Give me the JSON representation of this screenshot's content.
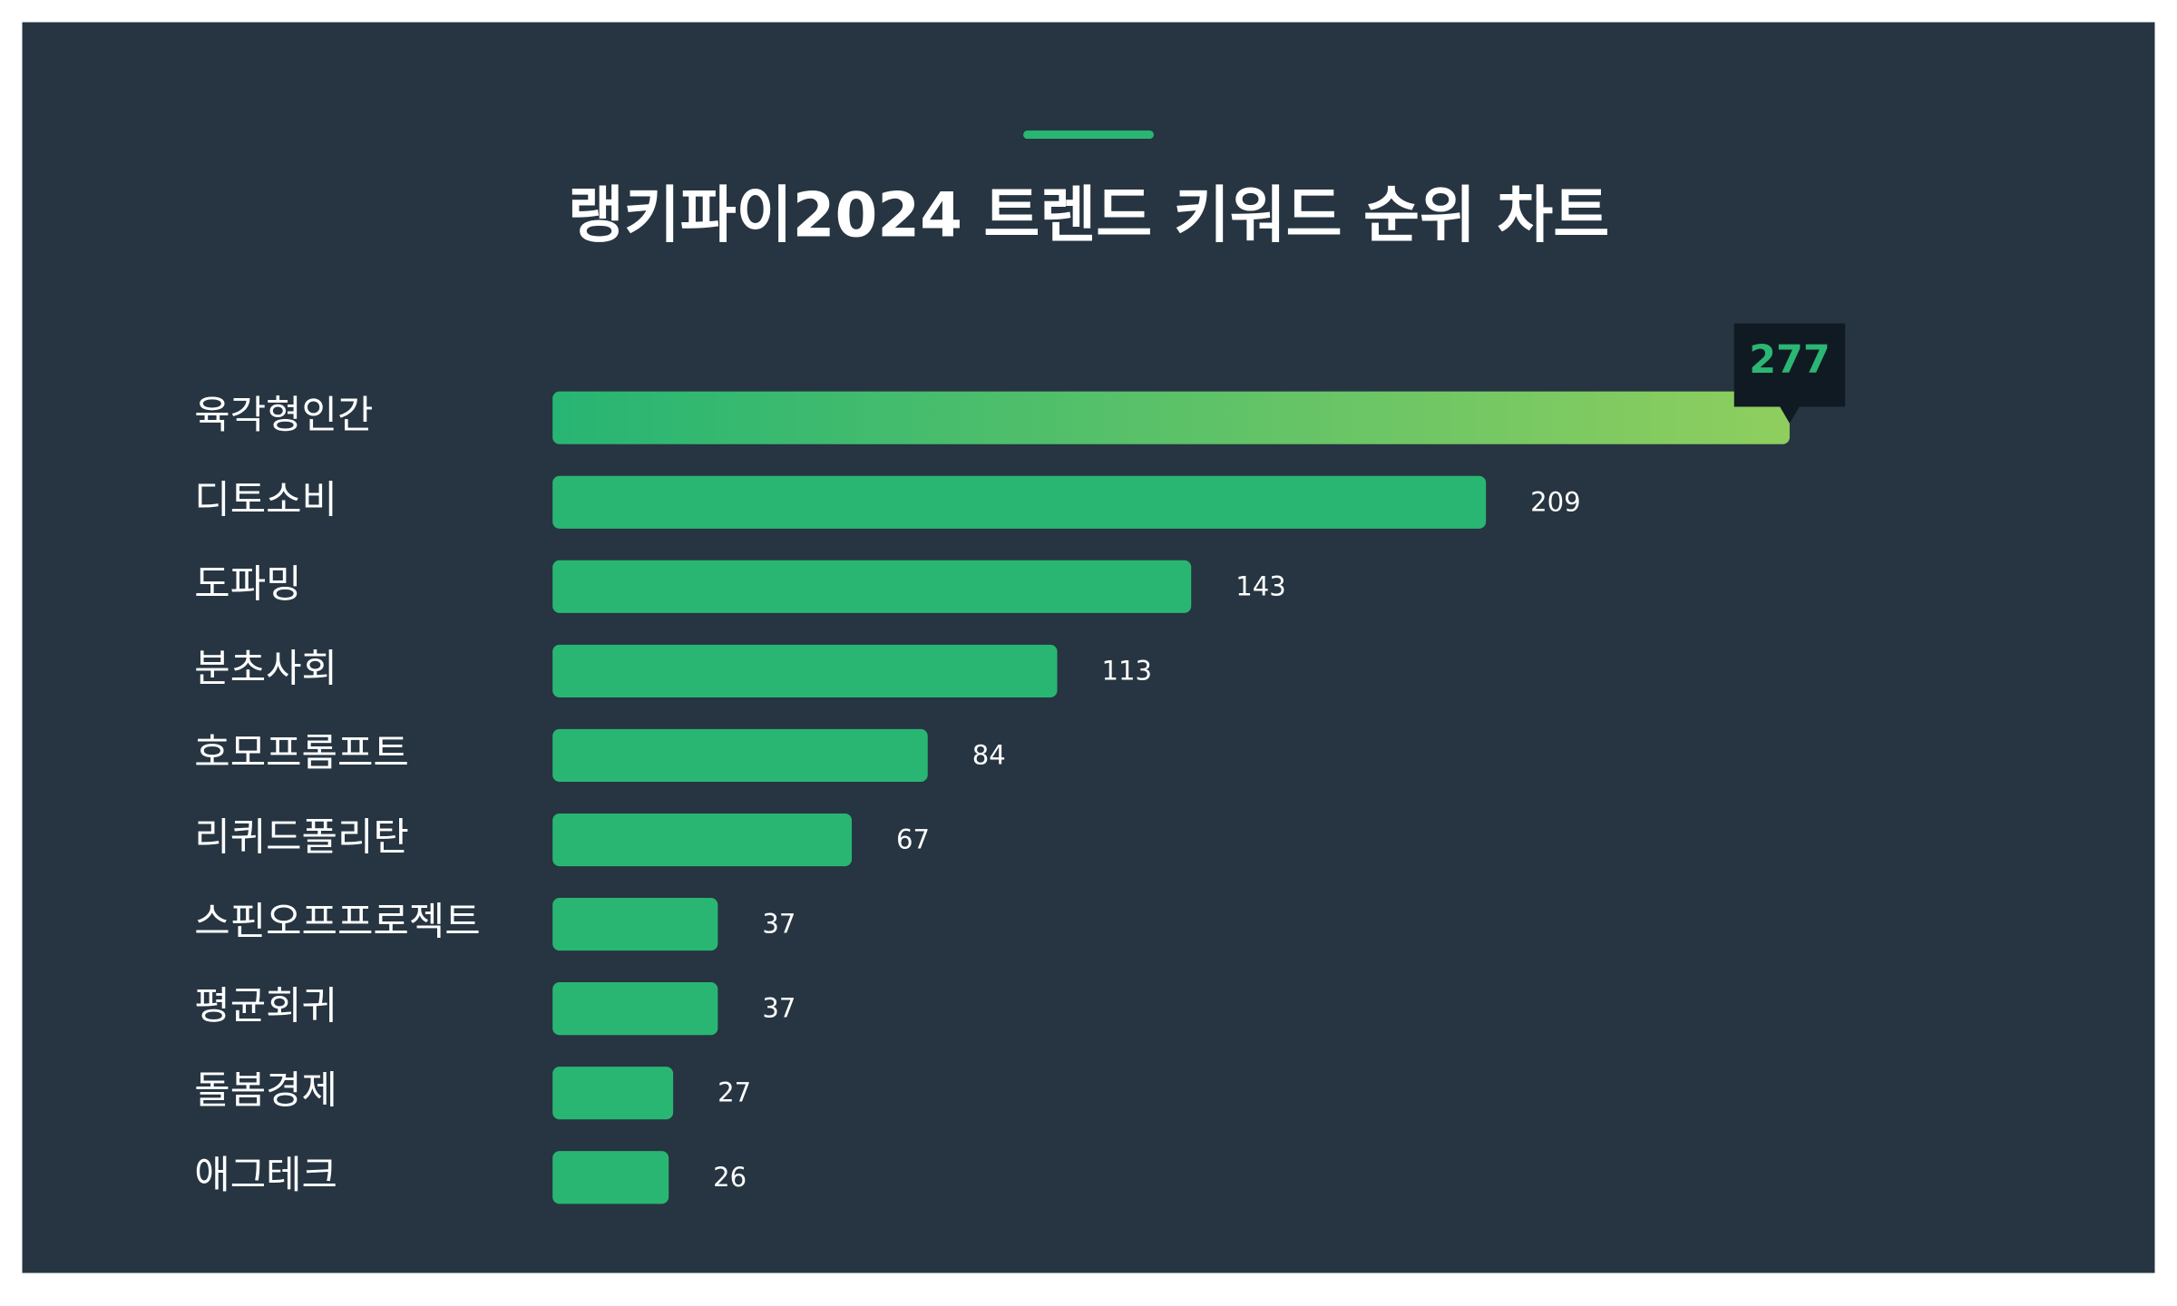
{
  "chart_data": {
    "type": "bar",
    "orientation": "horizontal",
    "title": "랭키파이2024 트렌드 키워드 순위 차트",
    "categories": [
      "육각형인간",
      "디토소비",
      "도파밍",
      "분초사회",
      "호모프롬프트",
      "리퀴드폴리탄",
      "스핀오프프로젝트",
      "평균회귀",
      "돌봄경제",
      "애그테크"
    ],
    "values": [
      277,
      209,
      143,
      113,
      84,
      67,
      37,
      37,
      27,
      26
    ],
    "color": "#29b673",
    "highlight_gradient": [
      "#27b573",
      "#8fce5e"
    ],
    "highlight_label_color": "#2bb673"
  }
}
